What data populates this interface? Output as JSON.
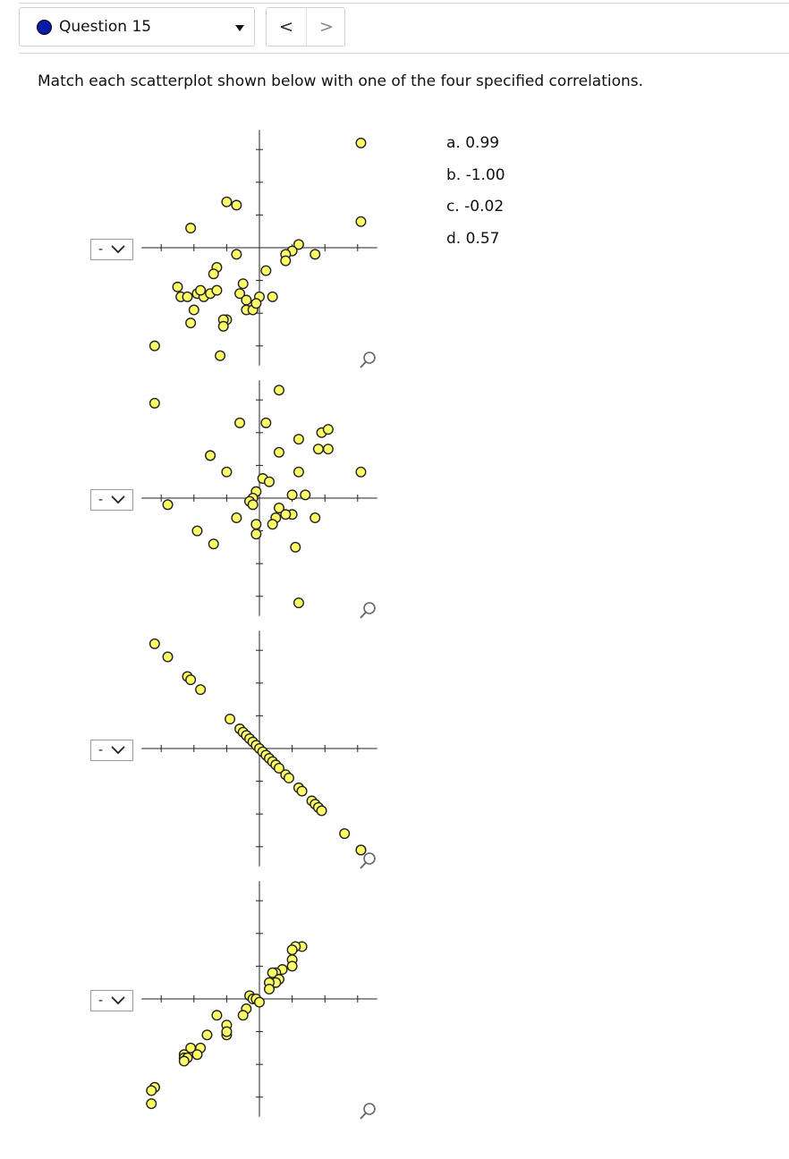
{
  "question": {
    "title": "Question 15"
  },
  "nav": {
    "prev_label": "<",
    "next_label": ">"
  },
  "prompt": "Match each scatterplot shown below with one of the four specified correlations.",
  "answer_options": [
    "a. 0.99",
    "b. -1.00",
    "c. -0.02",
    "d. 0.57"
  ],
  "dropdowns": [
    {
      "selected": "-"
    },
    {
      "selected": "-"
    },
    {
      "selected": "-"
    },
    {
      "selected": "-"
    }
  ],
  "colors": {
    "marker_fill": "#ffff66",
    "marker_stroke": "#222222",
    "axis": "#222222",
    "indicator": "#0a1aa8"
  },
  "icons": {
    "dropdown": "chevron-down-icon",
    "zoom": "magnifier-icon",
    "question_status": "circle-icon"
  },
  "chart_data": [
    {
      "type": "scatter",
      "title": "",
      "xlabel": "",
      "ylabel": "",
      "xlim": [
        -3.6,
        3.6
      ],
      "ylim": [
        -3.6,
        3.6
      ],
      "grid": false,
      "points": [
        [
          3.1,
          3.2
        ],
        [
          3.1,
          0.8
        ],
        [
          -2.1,
          0.6
        ],
        [
          -1.0,
          1.4
        ],
        [
          -0.7,
          1.3
        ],
        [
          1.2,
          0.1
        ],
        [
          1.0,
          -0.1
        ],
        [
          0.8,
          -0.2
        ],
        [
          1.7,
          -0.2
        ],
        [
          -0.7,
          -0.2
        ],
        [
          0.8,
          -0.4
        ],
        [
          -1.3,
          -0.6
        ],
        [
          -1.4,
          -0.8
        ],
        [
          0.2,
          -0.7
        ],
        [
          -2.5,
          -1.2
        ],
        [
          -2.4,
          -1.5
        ],
        [
          -2.2,
          -1.5
        ],
        [
          -1.9,
          -1.4
        ],
        [
          -1.7,
          -1.5
        ],
        [
          -1.5,
          -1.4
        ],
        [
          -1.3,
          -1.3
        ],
        [
          -1.8,
          -1.3
        ],
        [
          -0.5,
          -1.1
        ],
        [
          -0.6,
          -1.4
        ],
        [
          -0.4,
          -1.6
        ],
        [
          0.0,
          -1.5
        ],
        [
          0.4,
          -1.5
        ],
        [
          -2.0,
          -1.9
        ],
        [
          -0.4,
          -1.9
        ],
        [
          -0.2,
          -1.9
        ],
        [
          -0.1,
          -1.7
        ],
        [
          -1.0,
          -2.2
        ],
        [
          -1.1,
          -2.2
        ],
        [
          -2.1,
          -2.3
        ],
        [
          -1.1,
          -2.4
        ],
        [
          -3.2,
          -3.0
        ],
        [
          -1.2,
          -3.3
        ]
      ]
    },
    {
      "type": "scatter",
      "title": "",
      "xlabel": "",
      "ylabel": "",
      "xlim": [
        -3.6,
        3.6
      ],
      "ylim": [
        -3.6,
        3.6
      ],
      "grid": false,
      "points": [
        [
          0.6,
          3.3
        ],
        [
          -3.2,
          2.9
        ],
        [
          -0.6,
          2.3
        ],
        [
          0.2,
          2.3
        ],
        [
          1.9,
          2.0
        ],
        [
          2.1,
          2.1
        ],
        [
          1.2,
          1.8
        ],
        [
          1.8,
          1.5
        ],
        [
          2.1,
          1.5
        ],
        [
          -1.5,
          1.3
        ],
        [
          -1.5,
          1.3
        ],
        [
          0.6,
          1.4
        ],
        [
          -1.0,
          0.8
        ],
        [
          1.2,
          0.8
        ],
        [
          3.1,
          0.8
        ],
        [
          0.1,
          0.6
        ],
        [
          0.3,
          0.5
        ],
        [
          -0.1,
          0.2
        ],
        [
          -0.2,
          0.0
        ],
        [
          1.0,
          0.1
        ],
        [
          1.4,
          0.1
        ],
        [
          -0.3,
          -0.1
        ],
        [
          -0.2,
          -0.2
        ],
        [
          0.6,
          -0.3
        ],
        [
          -2.8,
          -0.2
        ],
        [
          1.0,
          -0.5
        ],
        [
          0.8,
          -0.5
        ],
        [
          0.5,
          -0.6
        ],
        [
          1.7,
          -0.6
        ],
        [
          -0.7,
          -0.6
        ],
        [
          -0.1,
          -0.8
        ],
        [
          0.4,
          -0.8
        ],
        [
          -1.9,
          -1.0
        ],
        [
          -0.1,
          -1.1
        ],
        [
          -1.4,
          -1.4
        ],
        [
          1.1,
          -1.5
        ],
        [
          1.2,
          -3.2
        ]
      ]
    },
    {
      "type": "scatter",
      "title": "",
      "xlabel": "",
      "ylabel": "",
      "xlim": [
        -3.6,
        3.6
      ],
      "ylim": [
        -3.6,
        3.6
      ],
      "grid": false,
      "points": [
        [
          -3.2,
          3.2
        ],
        [
          -2.8,
          2.8
        ],
        [
          -2.2,
          2.2
        ],
        [
          -2.1,
          2.1
        ],
        [
          -1.8,
          1.8
        ],
        [
          -0.9,
          0.9
        ],
        [
          -0.6,
          0.6
        ],
        [
          -0.5,
          0.5
        ],
        [
          -0.4,
          0.4
        ],
        [
          -0.3,
          0.3
        ],
        [
          -0.2,
          0.2
        ],
        [
          -0.1,
          0.1
        ],
        [
          0.0,
          0.0
        ],
        [
          0.1,
          -0.1
        ],
        [
          0.2,
          -0.2
        ],
        [
          0.3,
          -0.3
        ],
        [
          0.4,
          -0.4
        ],
        [
          0.5,
          -0.5
        ],
        [
          0.6,
          -0.6
        ],
        [
          0.8,
          -0.8
        ],
        [
          0.9,
          -0.9
        ],
        [
          1.2,
          -1.2
        ],
        [
          1.3,
          -1.3
        ],
        [
          1.6,
          -1.6
        ],
        [
          1.7,
          -1.7
        ],
        [
          1.8,
          -1.8
        ],
        [
          1.9,
          -1.9
        ],
        [
          2.6,
          -2.6
        ],
        [
          3.1,
          -3.1
        ],
        [
          3.1,
          -3.1
        ]
      ]
    },
    {
      "type": "scatter",
      "title": "",
      "xlabel": "",
      "ylabel": "",
      "xlim": [
        -3.6,
        3.6
      ],
      "ylim": [
        -3.6,
        3.6
      ],
      "grid": false,
      "points": [
        [
          1.3,
          1.6
        ],
        [
          1.1,
          1.6
        ],
        [
          1.0,
          1.5
        ],
        [
          1.0,
          1.2
        ],
        [
          1.0,
          1.0
        ],
        [
          0.7,
          0.9
        ],
        [
          0.5,
          0.8
        ],
        [
          0.4,
          0.8
        ],
        [
          0.6,
          0.6
        ],
        [
          0.5,
          0.5
        ],
        [
          0.3,
          0.5
        ],
        [
          0.3,
          0.3
        ],
        [
          -0.3,
          0.1
        ],
        [
          -0.2,
          0.0
        ],
        [
          -0.1,
          0.0
        ],
        [
          0.0,
          -0.1
        ],
        [
          -0.4,
          -0.3
        ],
        [
          -0.5,
          -0.5
        ],
        [
          -1.3,
          -0.5
        ],
        [
          -1.0,
          -0.8
        ],
        [
          -1.0,
          -1.1
        ],
        [
          -1.0,
          -1.0
        ],
        [
          -1.6,
          -1.1
        ],
        [
          -2.1,
          -1.5
        ],
        [
          -1.8,
          -1.5
        ],
        [
          -2.3,
          -1.7
        ],
        [
          -1.9,
          -1.7
        ],
        [
          -2.3,
          -1.8
        ],
        [
          -2.2,
          -1.8
        ],
        [
          -2.3,
          -1.9
        ],
        [
          -3.2,
          -2.7
        ],
        [
          -3.2,
          -2.7
        ],
        [
          -3.3,
          -2.8
        ],
        [
          -3.3,
          -3.2
        ]
      ]
    }
  ]
}
